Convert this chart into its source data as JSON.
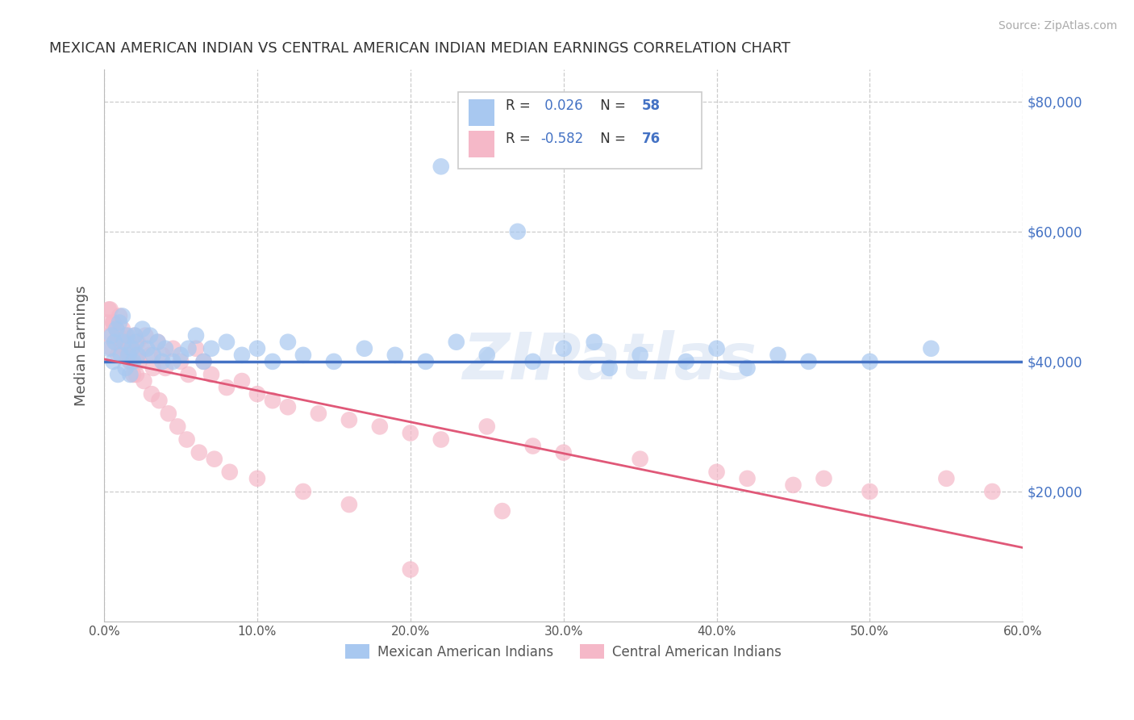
{
  "title": "MEXICAN AMERICAN INDIAN VS CENTRAL AMERICAN INDIAN MEDIAN EARNINGS CORRELATION CHART",
  "source": "Source: ZipAtlas.com",
  "ylabel": "Median Earnings",
  "watermark": "ZIPatlas",
  "series1_name": "Mexican American Indians",
  "series1_color": "#a8c8f0",
  "series1_R": 0.026,
  "series1_N": 58,
  "series2_name": "Central American Indians",
  "series2_color": "#f5b8c8",
  "series2_R": -0.582,
  "series2_N": 76,
  "xmin": 0.0,
  "xmax": 0.6,
  "ymin": 0,
  "ymax": 85000,
  "yticks": [
    20000,
    40000,
    60000,
    80000
  ],
  "xticks": [
    0.0,
    0.1,
    0.2,
    0.3,
    0.4,
    0.5,
    0.6
  ],
  "xtick_labels": [
    "0.0%",
    "10.0%",
    "20.0%",
    "30.0%",
    "40.0%",
    "50.0%",
    "60.0%"
  ],
  "ytick_labels": [
    "$20,000",
    "$40,000",
    "$60,000",
    "$80,000"
  ],
  "background_color": "#ffffff",
  "grid_color": "#cccccc",
  "trend_color_1": "#4472c4",
  "trend_color_2": "#e05878",
  "legend_text_color": "#4472c4",
  "legend_label_color": "#333333",
  "mexican_x": [
    0.003,
    0.005,
    0.006,
    0.007,
    0.008,
    0.009,
    0.01,
    0.011,
    0.012,
    0.013,
    0.014,
    0.015,
    0.016,
    0.017,
    0.018,
    0.019,
    0.02,
    0.021,
    0.022,
    0.025,
    0.028,
    0.03,
    0.032,
    0.035,
    0.038,
    0.04,
    0.045,
    0.05,
    0.055,
    0.06,
    0.065,
    0.07,
    0.08,
    0.09,
    0.1,
    0.11,
    0.12,
    0.13,
    0.15,
    0.17,
    0.19,
    0.21,
    0.23,
    0.25,
    0.28,
    0.3,
    0.32,
    0.35,
    0.38,
    0.4,
    0.42,
    0.44,
    0.46,
    0.5,
    0.54,
    0.22,
    0.27,
    0.33
  ],
  "mexican_y": [
    42000,
    44000,
    40000,
    43000,
    45000,
    38000,
    46000,
    41000,
    47000,
    43000,
    39000,
    44000,
    41000,
    38000,
    42000,
    40000,
    44000,
    43000,
    41000,
    45000,
    42000,
    44000,
    41000,
    43000,
    40000,
    42000,
    40000,
    41000,
    42000,
    44000,
    40000,
    42000,
    43000,
    41000,
    42000,
    40000,
    43000,
    41000,
    40000,
    42000,
    41000,
    40000,
    43000,
    41000,
    40000,
    42000,
    43000,
    41000,
    40000,
    42000,
    39000,
    41000,
    40000,
    40000,
    42000,
    70000,
    60000,
    39000
  ],
  "central_x": [
    0.002,
    0.003,
    0.004,
    0.005,
    0.006,
    0.007,
    0.008,
    0.009,
    0.01,
    0.011,
    0.012,
    0.013,
    0.014,
    0.015,
    0.016,
    0.017,
    0.018,
    0.019,
    0.02,
    0.021,
    0.022,
    0.023,
    0.025,
    0.027,
    0.03,
    0.032,
    0.035,
    0.038,
    0.04,
    0.045,
    0.05,
    0.055,
    0.06,
    0.065,
    0.07,
    0.08,
    0.09,
    0.1,
    0.11,
    0.12,
    0.14,
    0.16,
    0.18,
    0.2,
    0.22,
    0.25,
    0.28,
    0.3,
    0.35,
    0.4,
    0.42,
    0.45,
    0.47,
    0.5,
    0.003,
    0.006,
    0.009,
    0.013,
    0.017,
    0.021,
    0.026,
    0.031,
    0.036,
    0.042,
    0.048,
    0.054,
    0.062,
    0.072,
    0.082,
    0.1,
    0.13,
    0.16,
    0.2,
    0.26,
    0.55,
    0.58
  ],
  "central_y": [
    46000,
    44000,
    48000,
    42000,
    46000,
    43000,
    45000,
    41000,
    47000,
    43000,
    45000,
    42000,
    44000,
    41000,
    43000,
    40000,
    42000,
    38000,
    44000,
    41000,
    43000,
    40000,
    42000,
    44000,
    41000,
    39000,
    43000,
    41000,
    39000,
    42000,
    40000,
    38000,
    42000,
    40000,
    38000,
    36000,
    37000,
    35000,
    34000,
    33000,
    32000,
    31000,
    30000,
    29000,
    28000,
    30000,
    27000,
    26000,
    25000,
    23000,
    22000,
    21000,
    22000,
    20000,
    48000,
    46000,
    44000,
    42000,
    40000,
    38000,
    37000,
    35000,
    34000,
    32000,
    30000,
    28000,
    26000,
    25000,
    23000,
    22000,
    20000,
    18000,
    8000,
    17000,
    22000,
    20000
  ]
}
